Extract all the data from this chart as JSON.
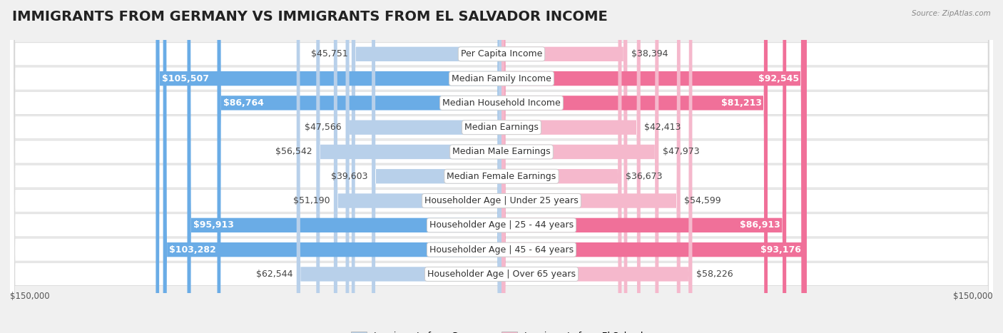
{
  "title": "IMMIGRANTS FROM GERMANY VS IMMIGRANTS FROM EL SALVADOR INCOME",
  "source": "Source: ZipAtlas.com",
  "categories": [
    "Per Capita Income",
    "Median Family Income",
    "Median Household Income",
    "Median Earnings",
    "Median Male Earnings",
    "Median Female Earnings",
    "Householder Age | Under 25 years",
    "Householder Age | 25 - 44 years",
    "Householder Age | 45 - 64 years",
    "Householder Age | Over 65 years"
  ],
  "germany_values": [
    45751,
    105507,
    86764,
    47566,
    56542,
    39603,
    51190,
    95913,
    103282,
    62544
  ],
  "salvador_values": [
    38394,
    92545,
    81213,
    42413,
    47973,
    36673,
    54599,
    86913,
    93176,
    58226
  ],
  "germany_labels": [
    "$45,751",
    "$105,507",
    "$86,764",
    "$47,566",
    "$56,542",
    "$39,603",
    "$51,190",
    "$95,913",
    "$103,282",
    "$62,544"
  ],
  "salvador_labels": [
    "$38,394",
    "$92,545",
    "$81,213",
    "$42,413",
    "$47,973",
    "$36,673",
    "$54,599",
    "$86,913",
    "$93,176",
    "$58,226"
  ],
  "germany_color_light": "#b8d0ea",
  "germany_color_dark": "#6aace6",
  "salvador_color_light": "#f5b8cc",
  "salvador_color_dark": "#f07099",
  "germany_inside_threshold": 75000,
  "salvador_inside_threshold": 75000,
  "max_value": 150000,
  "background_color": "#f0f0f0",
  "row_bg_color": "#ffffff",
  "row_border_color": "#d8d8d8",
  "legend_germany": "Immigrants from Germany",
  "legend_salvador": "Immigrants from El Salvador",
  "title_fontsize": 14,
  "label_fontsize": 9,
  "category_fontsize": 9
}
